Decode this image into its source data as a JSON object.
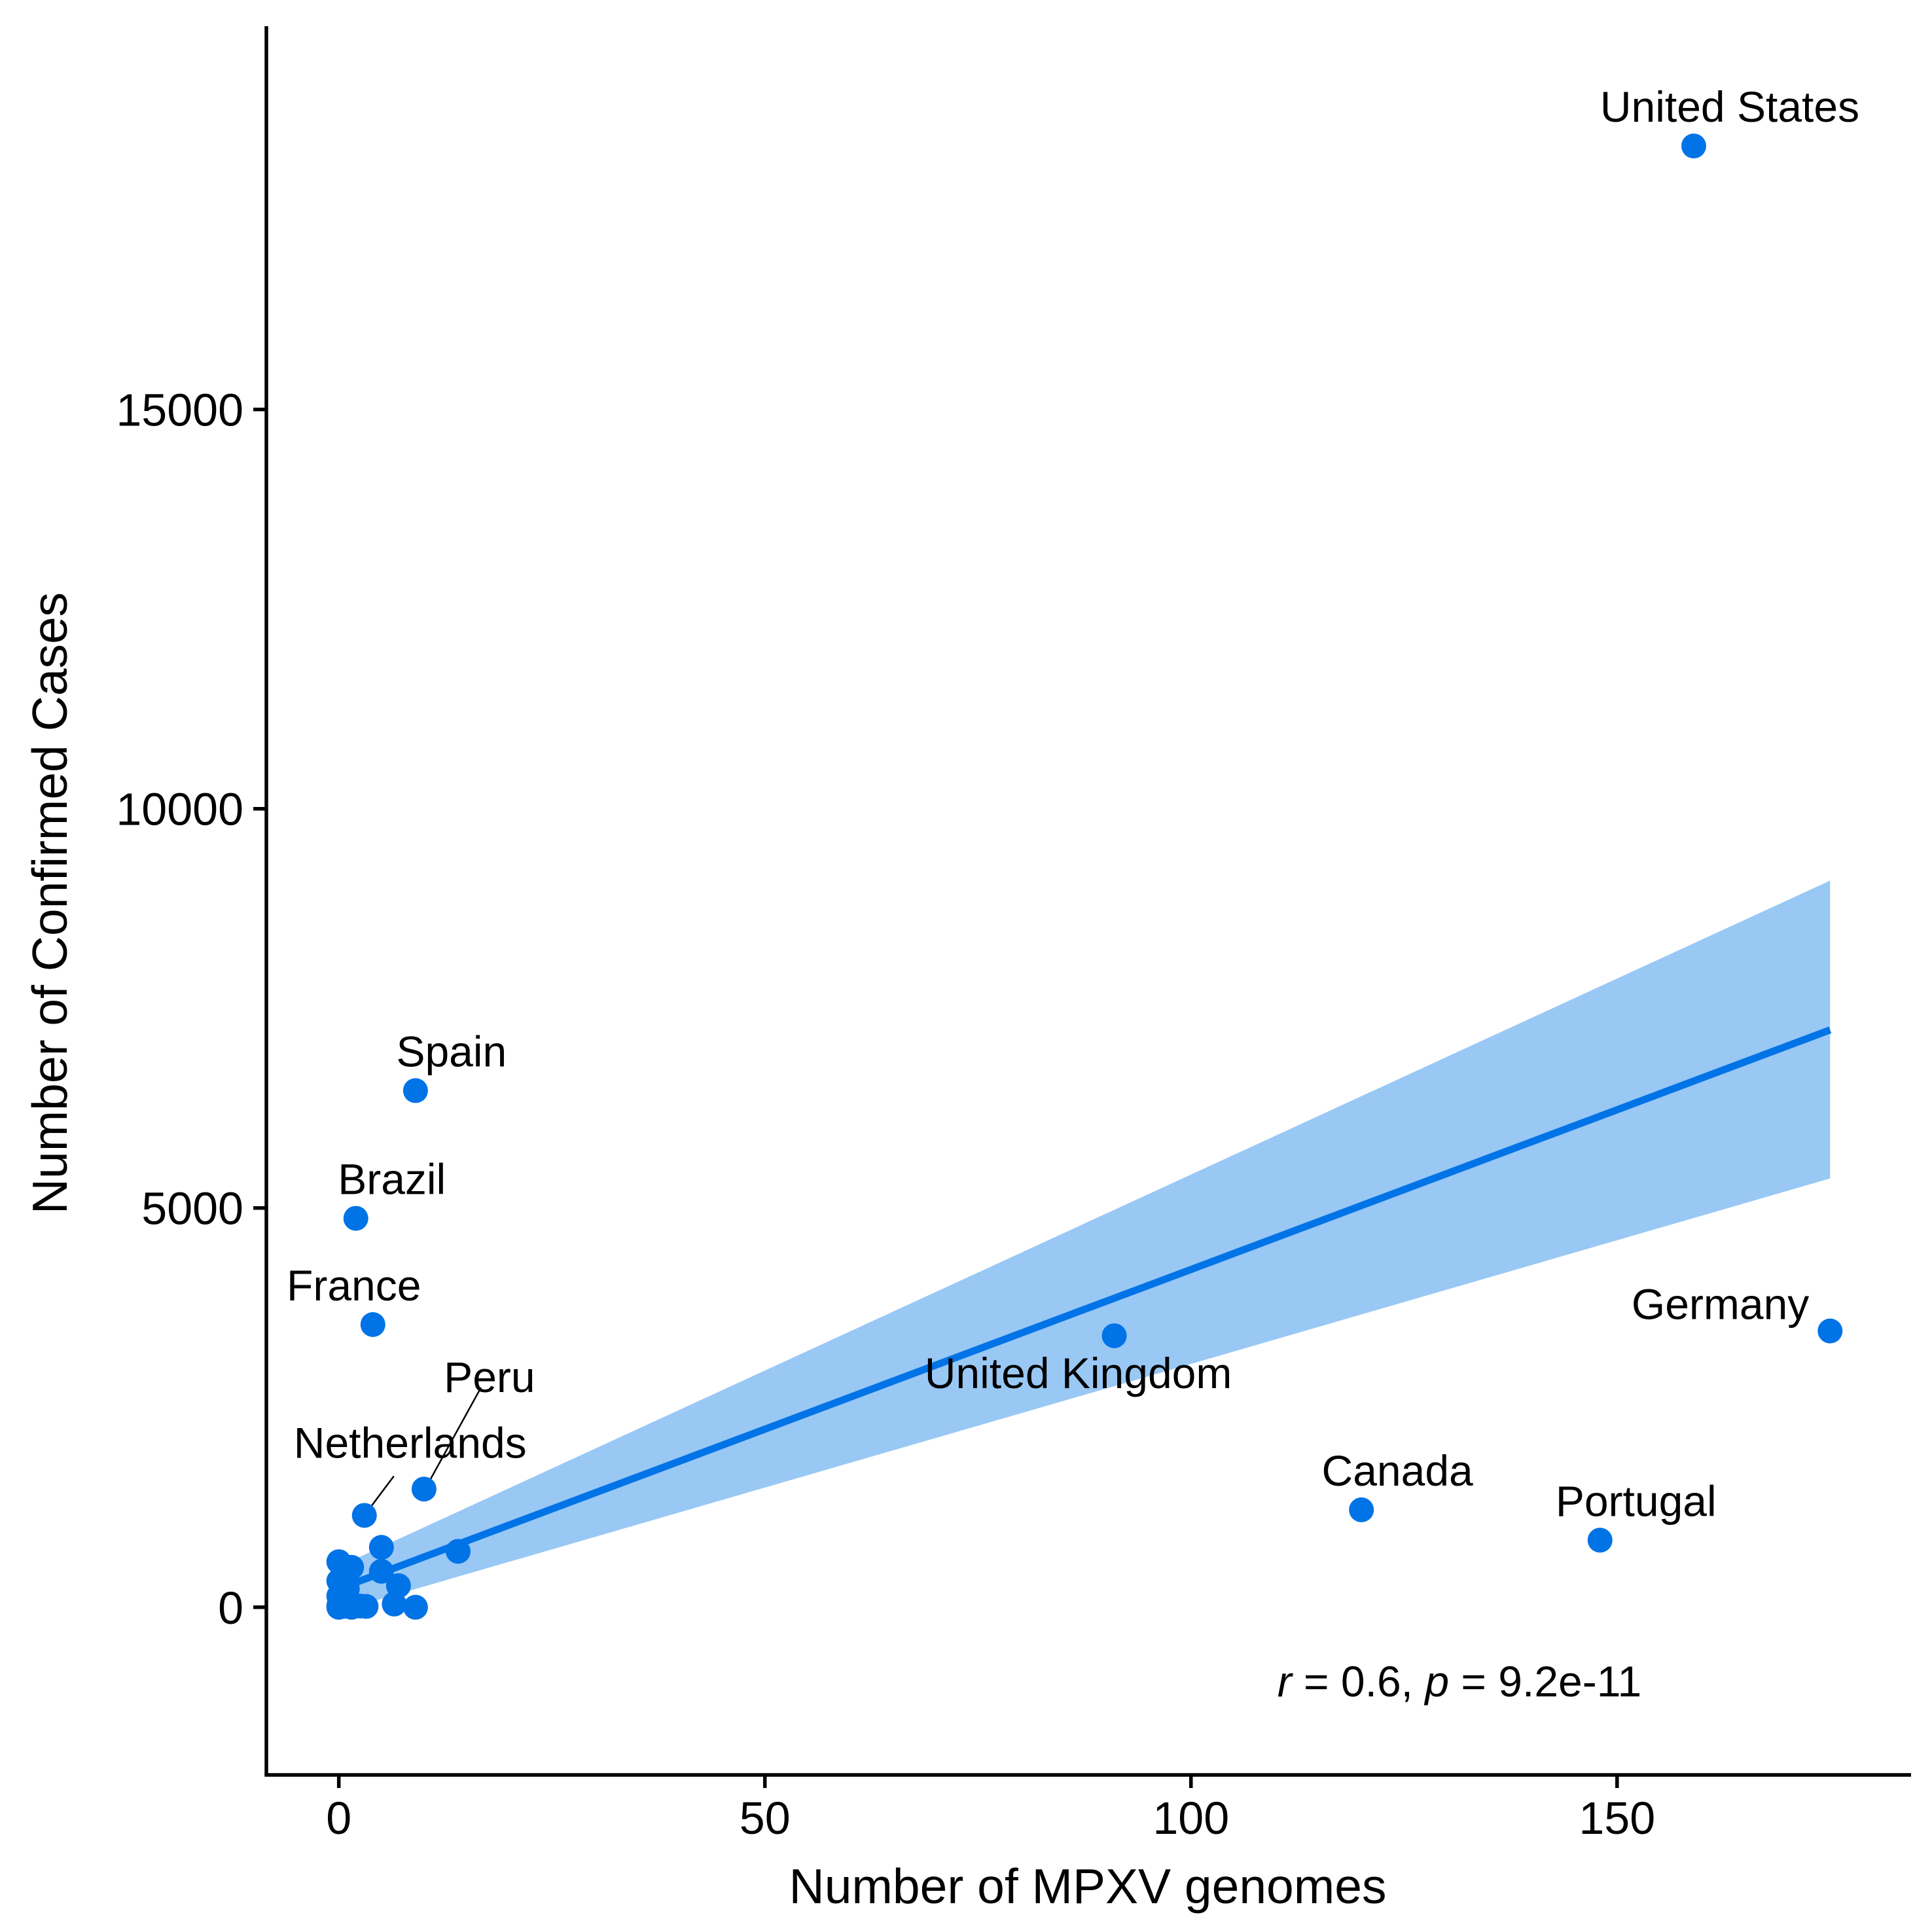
{
  "chart_data": {
    "type": "scatter",
    "title": "",
    "xlabel": "Number of MPXV genomes",
    "ylabel": "Number of Confirmed Cases",
    "xlim": [
      -8.5,
      184.5
    ],
    "ylim": [
      -2100,
      19800
    ],
    "xticks": [
      0,
      50,
      100,
      150
    ],
    "yticks": [
      0,
      5000,
      10000,
      15000
    ],
    "grid": false,
    "legend": "none",
    "colors": {
      "point": "#0073e6",
      "line": "#0073e6",
      "ribbon": "#99c8f5",
      "axis": "#000000",
      "leader": "#000000"
    },
    "points": [
      {
        "x": 159,
        "y": 18300
      },
      {
        "x": 9,
        "y": 6470
      },
      {
        "x": 2,
        "y": 4870
      },
      {
        "x": 4,
        "y": 3540
      },
      {
        "x": 91,
        "y": 3400
      },
      {
        "x": 175,
        "y": 3460
      },
      {
        "x": 10,
        "y": 1480
      },
      {
        "x": 3,
        "y": 1150
      },
      {
        "x": 120,
        "y": 1220
      },
      {
        "x": 148,
        "y": 840
      },
      {
        "x": 14,
        "y": 700
      },
      {
        "x": 5,
        "y": 750
      },
      {
        "x": 0,
        "y": 570
      },
      {
        "x": 1.5,
        "y": 500
      },
      {
        "x": 5,
        "y": 450
      },
      {
        "x": 0,
        "y": 330
      },
      {
        "x": 7,
        "y": 270
      },
      {
        "x": 1,
        "y": 230
      },
      {
        "x": 0,
        "y": 140
      },
      {
        "x": 6.5,
        "y": 40
      },
      {
        "x": 9,
        "y": 0
      },
      {
        "x": 0,
        "y": 20
      },
      {
        "x": 0.5,
        "y": 10
      },
      {
        "x": 1.5,
        "y": 0
      },
      {
        "x": 2.5,
        "y": 15
      },
      {
        "x": 3.2,
        "y": 10
      },
      {
        "x": 0,
        "y": 0
      }
    ],
    "labels": [
      {
        "text": "United States",
        "x": 159,
        "y": 18300
      },
      {
        "text": "Spain",
        "x": 9,
        "y": 6470
      },
      {
        "text": "Brazil",
        "x": 2,
        "y": 4870
      },
      {
        "text": "France",
        "x": 4,
        "y": 3540
      },
      {
        "text": "Germany",
        "x": 175,
        "y": 3460
      },
      {
        "text": "United Kingdom",
        "x": 91,
        "y": 3400
      },
      {
        "text": "Peru",
        "x": 10,
        "y": 1480
      },
      {
        "text": "Netherlands",
        "x": 3,
        "y": 1150
      },
      {
        "text": "Canada",
        "x": 120,
        "y": 1220
      },
      {
        "text": "Portugal",
        "x": 148,
        "y": 840
      }
    ],
    "fit": {
      "x": [
        0,
        175
      ],
      "y": [
        230,
        7230
      ],
      "ci_lower": [
        -50,
        5370
      ],
      "ci_upper": [
        510,
        9100
      ]
    },
    "annotation": {
      "r_symbol": "r",
      "r_value": " = 0.6, ",
      "p_symbol": "p",
      "p_value": " = 9.2e-11"
    }
  }
}
